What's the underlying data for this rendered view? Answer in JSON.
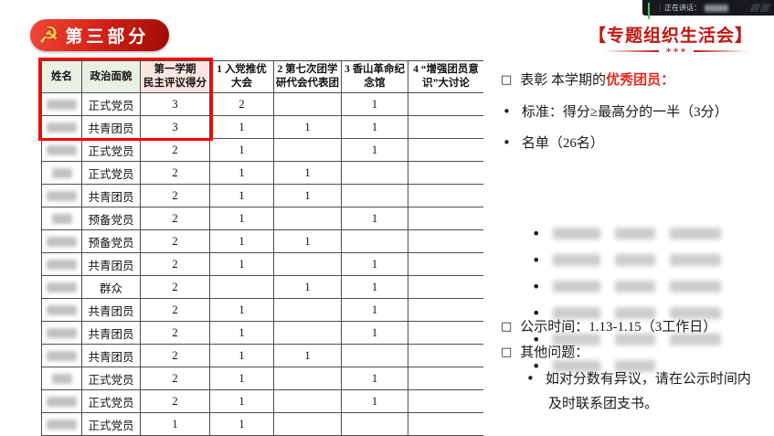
{
  "colors": {
    "accent_red": "#c31511",
    "highlight_red": "#e8281e",
    "badge_red_light": "#f0483a",
    "badge_red_dark": "#9e0b06",
    "red_box": "#ff0000",
    "header_green": "#e9f0e4",
    "header_pink": "#fbe5e1",
    "mic_green": "#3ecf5e",
    "bar_bg": "#17191d"
  },
  "meeting_bar": {
    "speaking_label": "正在讲话：",
    "speaker_blurred": true
  },
  "slide": {
    "section_badge": "第三部分",
    "emblem_glyph": "☭",
    "title": "【专题组织生活会】",
    "divider_stars": "∗∗∗"
  },
  "table": {
    "headers": [
      "姓名",
      "政治面貌",
      "第一学期\n民主评议得分",
      "1 入党推优\n大会",
      "2 第七次团学\n研代会代表团",
      "3 香山革命纪\n念馆",
      "4 “增强团员意\n识”大讨论"
    ],
    "header_fills": [
      "#e9f0e4",
      "#e9f0e4",
      "#fbe5e1",
      "#ffffff",
      "#ffffff",
      "#ffffff",
      "#ffffff"
    ],
    "rows": [
      {
        "name_len": 3,
        "status": "正式党员",
        "score": "3",
        "c1": "2",
        "c2": "",
        "c3": "1",
        "c4": ""
      },
      {
        "name_len": 3,
        "status": "共青团员",
        "score": "3",
        "c1": "1",
        "c2": "1",
        "c3": "1",
        "c4": ""
      },
      {
        "name_len": 3,
        "status": "正式党员",
        "score": "2",
        "c1": "1",
        "c2": "",
        "c3": "1",
        "c4": ""
      },
      {
        "name_len": 2,
        "status": "正式党员",
        "score": "2",
        "c1": "1",
        "c2": "1",
        "c3": "",
        "c4": ""
      },
      {
        "name_len": 3,
        "status": "共青团员",
        "score": "2",
        "c1": "1",
        "c2": "1",
        "c3": "",
        "c4": ""
      },
      {
        "name_len": 2,
        "status": "预备党员",
        "score": "2",
        "c1": "1",
        "c2": "",
        "c3": "1",
        "c4": ""
      },
      {
        "name_len": 3,
        "status": "预备党员",
        "score": "2",
        "c1": "1",
        "c2": "1",
        "c3": "",
        "c4": ""
      },
      {
        "name_len": 3,
        "status": "共青团员",
        "score": "2",
        "c1": "1",
        "c2": "",
        "c3": "1",
        "c4": ""
      },
      {
        "name_len": 3,
        "status": "群众",
        "score": "2",
        "c1": "",
        "c2": "1",
        "c3": "1",
        "c4": ""
      },
      {
        "name_len": 3,
        "status": "共青团员",
        "score": "2",
        "c1": "1",
        "c2": "",
        "c3": "1",
        "c4": ""
      },
      {
        "name_len": 3,
        "status": "共青团员",
        "score": "2",
        "c1": "1",
        "c2": "",
        "c3": "1",
        "c4": ""
      },
      {
        "name_len": 3,
        "status": "共青团员",
        "score": "2",
        "c1": "1",
        "c2": "1",
        "c3": "",
        "c4": ""
      },
      {
        "name_len": 2,
        "status": "正式党员",
        "score": "2",
        "c1": "1",
        "c2": "",
        "c3": "1",
        "c4": ""
      },
      {
        "name_len": 3,
        "status": "正式党员",
        "score": "2",
        "c1": "1",
        "c2": "",
        "c3": "1",
        "c4": ""
      },
      {
        "name_len": 3,
        "status": "正式党员",
        "score": "1",
        "c1": "1",
        "c2": "",
        "c3": "",
        "c4": ""
      }
    ],
    "names_redacted": true
  },
  "panel": {
    "award": {
      "bullet": "□",
      "prefix": "表彰  本学期的",
      "highlight": "优秀团员：",
      "suffix": ""
    },
    "criteria": "标准：得分≥最高分的一半（3分）",
    "list_title": "名单（26名）",
    "awardee_rows": [
      {
        "chunks": 3
      },
      {
        "chunks": 3
      },
      {
        "chunks": 3
      },
      {
        "chunks": 3
      },
      {
        "chunks": 3
      },
      {
        "chunks": 2
      }
    ],
    "awardees_redacted": true,
    "publicity": "公示时间：1.13-1.15（3工作日）",
    "other": "其他问题：",
    "note_line1": "如对分数有异议，请在公示时间内",
    "note_line2": "及时联系团支书。"
  }
}
